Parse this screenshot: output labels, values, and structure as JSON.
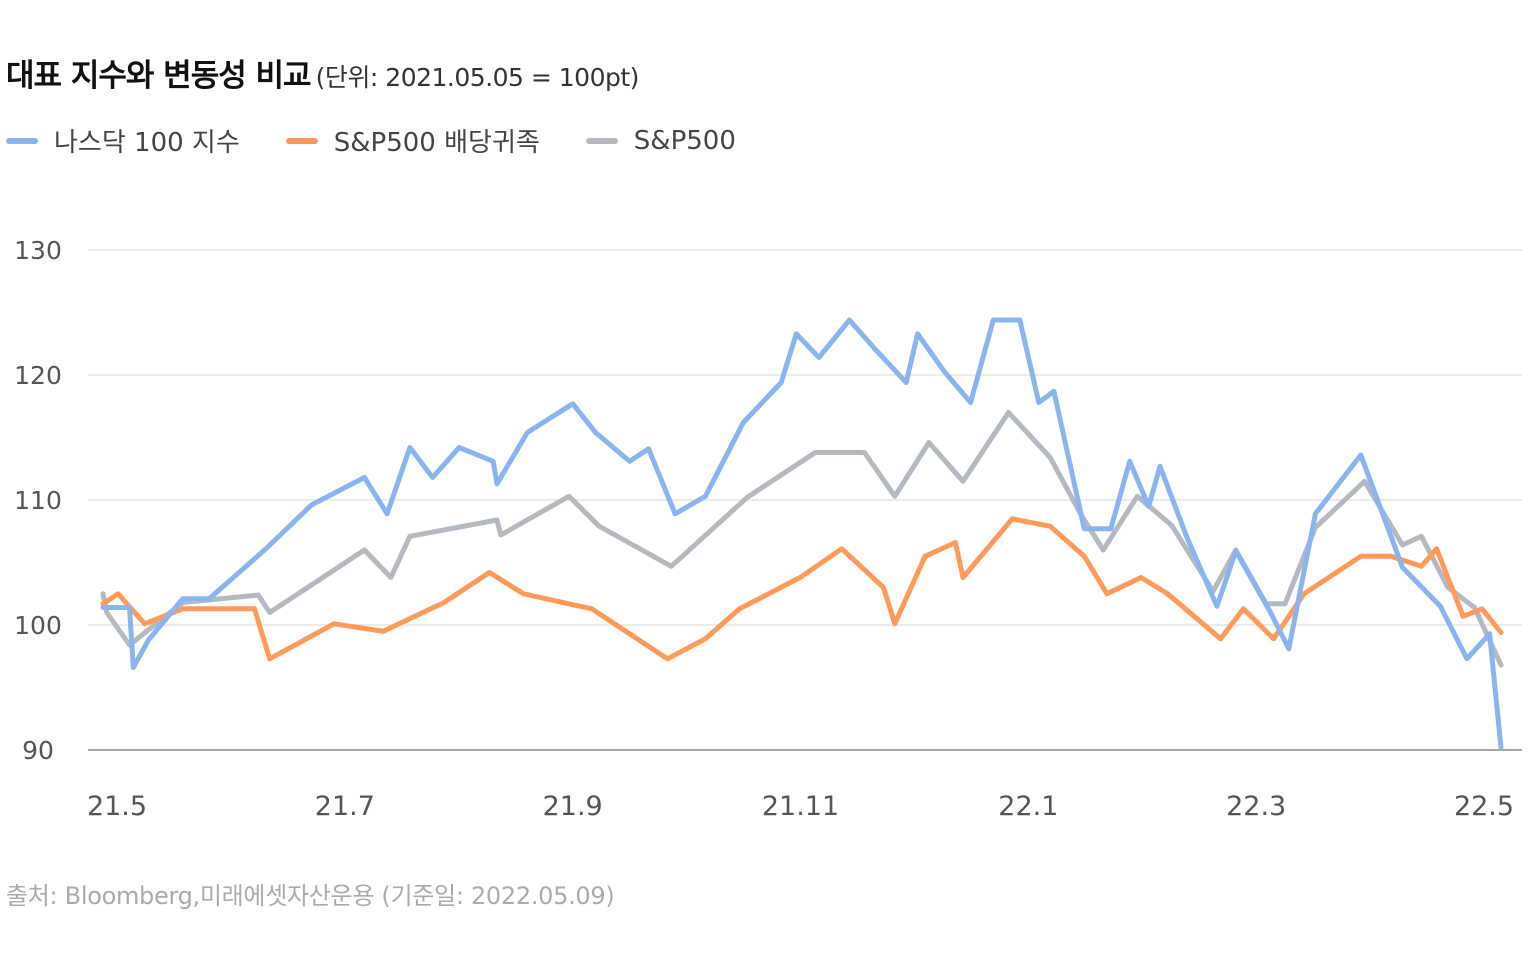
{
  "chart_data": {
    "type": "line",
    "title": "대표 지수와 변동성 비교",
    "subtitle": "(단위: 2021.05.05 = 100pt)",
    "source": "출처: Bloomberg,미래에셋자산운용 (기준일: 2022.05.09)",
    "ylim": [
      90,
      130
    ],
    "yticks": [
      90,
      100,
      110,
      120,
      130
    ],
    "xlim": [
      "2021-05-05",
      "2022-05-09"
    ],
    "xtick_labels": [
      "21.5",
      "21.7",
      "21.9",
      "21.11",
      "22.1",
      "22.3",
      "22.5"
    ],
    "grid": "horizontal",
    "legend_position": "top-left",
    "series": [
      {
        "name": "나스닥 100 지수",
        "color": "#8AB4EE",
        "points": [
          [
            "2021-05-05",
            101.4
          ],
          [
            "2021-05-12",
            101.4
          ],
          [
            "2021-05-13",
            96.6
          ],
          [
            "2021-05-17",
            98.8
          ],
          [
            "2021-05-26",
            102.1
          ],
          [
            "2021-06-02",
            102.1
          ],
          [
            "2021-06-17",
            106.1
          ],
          [
            "2021-06-29",
            109.6
          ],
          [
            "2021-07-13",
            111.8
          ],
          [
            "2021-07-19",
            108.9
          ],
          [
            "2021-07-25",
            114.2
          ],
          [
            "2021-07-31",
            111.8
          ],
          [
            "2021-08-07",
            114.2
          ],
          [
            "2021-08-16",
            113.1
          ],
          [
            "2021-08-17",
            111.3
          ],
          [
            "2021-08-25",
            115.4
          ],
          [
            "2021-09-06",
            117.7
          ],
          [
            "2021-09-12",
            115.4
          ],
          [
            "2021-09-21",
            113.1
          ],
          [
            "2021-09-26",
            114.1
          ],
          [
            "2021-10-03",
            108.9
          ],
          [
            "2021-10-11",
            110.3
          ],
          [
            "2021-10-21",
            116.2
          ],
          [
            "2021-10-31",
            119.4
          ],
          [
            "2021-11-04",
            123.3
          ],
          [
            "2021-11-10",
            121.4
          ],
          [
            "2021-11-18",
            124.4
          ],
          [
            "2021-11-25",
            122.0
          ],
          [
            "2021-12-03",
            119.4
          ],
          [
            "2021-12-06",
            123.3
          ],
          [
            "2021-12-13",
            120.3
          ],
          [
            "2021-12-20",
            117.8
          ],
          [
            "2021-12-26",
            124.4
          ],
          [
            "2022-01-02",
            124.4
          ],
          [
            "2022-01-07",
            117.8
          ],
          [
            "2022-01-11",
            118.7
          ],
          [
            "2022-01-19",
            107.7
          ],
          [
            "2022-01-26",
            107.7
          ],
          [
            "2022-01-31",
            113.1
          ],
          [
            "2022-02-05",
            109.5
          ],
          [
            "2022-02-08",
            112.7
          ],
          [
            "2022-02-15",
            107.1
          ],
          [
            "2022-02-23",
            101.5
          ],
          [
            "2022-02-28",
            105.9
          ],
          [
            "2022-03-09",
            101.1
          ],
          [
            "2022-03-14",
            98.1
          ],
          [
            "2022-03-21",
            108.9
          ],
          [
            "2022-04-02",
            113.6
          ],
          [
            "2022-04-13",
            104.6
          ],
          [
            "2022-04-23",
            101.5
          ],
          [
            "2022-04-30",
            97.3
          ],
          [
            "2022-05-06",
            99.3
          ],
          [
            "2022-05-09",
            90.2
          ]
        ]
      },
      {
        "name": "S&P500 배당귀족",
        "color": "#FF9A5A",
        "points": [
          [
            "2021-05-05",
            101.7
          ],
          [
            "2021-05-09",
            102.5
          ],
          [
            "2021-05-16",
            100.1
          ],
          [
            "2021-05-26",
            101.3
          ],
          [
            "2021-06-14",
            101.3
          ],
          [
            "2021-06-18",
            97.3
          ],
          [
            "2021-07-05",
            100.1
          ],
          [
            "2021-07-18",
            99.5
          ],
          [
            "2021-08-03",
            101.8
          ],
          [
            "2021-08-15",
            104.2
          ],
          [
            "2021-08-24",
            102.5
          ],
          [
            "2021-09-11",
            101.3
          ],
          [
            "2021-09-23",
            98.9
          ],
          [
            "2021-10-01",
            97.3
          ],
          [
            "2021-10-11",
            98.9
          ],
          [
            "2021-10-20",
            101.3
          ],
          [
            "2021-11-05",
            103.8
          ],
          [
            "2021-11-16",
            106.1
          ],
          [
            "2021-11-27",
            103.0
          ],
          [
            "2021-11-30",
            100.1
          ],
          [
            "2021-12-08",
            105.5
          ],
          [
            "2021-12-16",
            106.6
          ],
          [
            "2021-12-18",
            103.8
          ],
          [
            "2021-12-31",
            108.5
          ],
          [
            "2022-01-10",
            107.9
          ],
          [
            "2022-01-19",
            105.5
          ],
          [
            "2022-01-25",
            102.5
          ],
          [
            "2022-02-03",
            103.8
          ],
          [
            "2022-02-10",
            102.5
          ],
          [
            "2022-02-24",
            98.9
          ],
          [
            "2022-03-02",
            101.3
          ],
          [
            "2022-03-10",
            98.9
          ],
          [
            "2022-03-18",
            102.5
          ],
          [
            "2022-04-02",
            105.5
          ],
          [
            "2022-04-10",
            105.5
          ],
          [
            "2022-04-18",
            104.7
          ],
          [
            "2022-04-22",
            106.1
          ],
          [
            "2022-04-29",
            100.7
          ],
          [
            "2022-05-04",
            101.3
          ],
          [
            "2022-05-09",
            99.4
          ]
        ]
      },
      {
        "name": "S&P500",
        "color": "#B4B9C0",
        "points": [
          [
            "2021-05-05",
            102.5
          ],
          [
            "2021-05-06",
            101.0
          ],
          [
            "2021-05-12",
            98.4
          ],
          [
            "2021-05-26",
            101.8
          ],
          [
            "2021-06-15",
            102.4
          ],
          [
            "2021-06-18",
            101.0
          ],
          [
            "2021-07-13",
            106.0
          ],
          [
            "2021-07-20",
            103.8
          ],
          [
            "2021-07-25",
            107.1
          ],
          [
            "2021-08-17",
            108.4
          ],
          [
            "2021-08-18",
            107.2
          ],
          [
            "2021-09-05",
            110.3
          ],
          [
            "2021-09-13",
            107.9
          ],
          [
            "2021-10-02",
            104.7
          ],
          [
            "2021-10-22",
            110.2
          ],
          [
            "2021-11-09",
            113.8
          ],
          [
            "2021-11-22",
            113.8
          ],
          [
            "2021-11-30",
            110.3
          ],
          [
            "2021-12-09",
            114.6
          ],
          [
            "2021-12-18",
            111.5
          ],
          [
            "2021-12-30",
            117.0
          ],
          [
            "2022-01-10",
            113.4
          ],
          [
            "2022-01-18",
            108.9
          ],
          [
            "2022-01-24",
            106.0
          ],
          [
            "2022-02-02",
            110.3
          ],
          [
            "2022-02-11",
            108.0
          ],
          [
            "2022-02-22",
            102.7
          ],
          [
            "2022-02-28",
            106.0
          ],
          [
            "2022-03-08",
            101.7
          ],
          [
            "2022-03-13",
            101.7
          ],
          [
            "2022-03-21",
            107.8
          ],
          [
            "2022-04-03",
            111.5
          ],
          [
            "2022-04-13",
            106.4
          ],
          [
            "2022-04-18",
            107.1
          ],
          [
            "2022-04-25",
            103.0
          ],
          [
            "2022-05-02",
            101.4
          ],
          [
            "2022-05-09",
            96.8
          ]
        ]
      }
    ]
  }
}
